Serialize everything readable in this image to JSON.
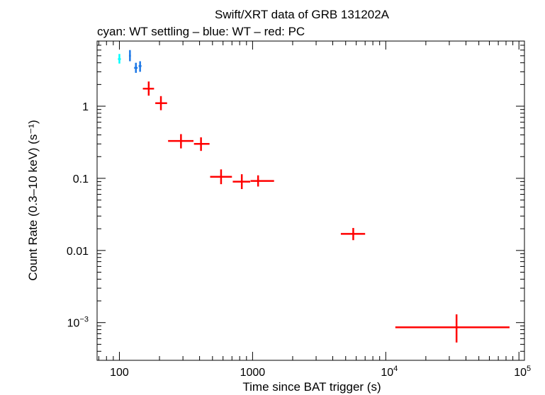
{
  "chart_data": {
    "type": "scatter",
    "title": "Swift/XRT data of GRB 131202A",
    "subtitle": "cyan: WT settling – blue: WT – red: PC",
    "xlabel": "Time since BAT trigger (s)",
    "ylabel": "Count Rate (0.3–10 keV) (s⁻¹)",
    "x_scale": "log",
    "y_scale": "log",
    "xlim": [
      68,
      110000
    ],
    "ylim": [
      0.0003,
      8
    ],
    "x_ticks": [
      {
        "value": 100,
        "label": "100"
      },
      {
        "value": 1000,
        "label": "1000"
      },
      {
        "value": 10000,
        "label": "10",
        "sup": "4"
      },
      {
        "value": 100000,
        "label": "10",
        "sup": "5"
      }
    ],
    "y_ticks": [
      {
        "value": 1,
        "label": "1"
      },
      {
        "value": 0.1,
        "label": "0.1"
      },
      {
        "value": 0.01,
        "label": "0.01"
      },
      {
        "value": 0.001,
        "label": "10",
        "sup": "−3"
      }
    ],
    "grid": false,
    "series": [
      {
        "color": "#00ffff",
        "points": [
          {
            "x": 100,
            "xlo": 97.5,
            "xhi": 102.5,
            "y": 4.5,
            "ylo": 3.9,
            "yhi": 5.3
          }
        ]
      },
      {
        "color": "#1e78e6",
        "points": [
          {
            "x": 120,
            "xlo": 118,
            "xhi": 122,
            "y": 5.0,
            "ylo": 4.2,
            "yhi": 6.0
          },
          {
            "x": 133,
            "xlo": 129,
            "xhi": 137,
            "y": 3.4,
            "ylo": 2.9,
            "yhi": 4.0
          },
          {
            "x": 143,
            "xlo": 139.5,
            "xhi": 146.5,
            "y": 3.6,
            "ylo": 3.0,
            "yhi": 4.2
          }
        ]
      },
      {
        "color": "#ff0000",
        "points": [
          {
            "x": 166,
            "xlo": 150,
            "xhi": 182,
            "y": 1.75,
            "ylo": 1.4,
            "yhi": 2.2
          },
          {
            "x": 205,
            "xlo": 186,
            "xhi": 228,
            "y": 1.1,
            "ylo": 0.88,
            "yhi": 1.38
          },
          {
            "x": 290,
            "xlo": 232,
            "xhi": 360,
            "y": 0.33,
            "ylo": 0.26,
            "yhi": 0.41
          },
          {
            "x": 410,
            "xlo": 363,
            "xhi": 475,
            "y": 0.3,
            "ylo": 0.24,
            "yhi": 0.37
          },
          {
            "x": 580,
            "xlo": 480,
            "xhi": 700,
            "y": 0.105,
            "ylo": 0.083,
            "yhi": 0.133
          },
          {
            "x": 830,
            "xlo": 710,
            "xhi": 960,
            "y": 0.09,
            "ylo": 0.071,
            "yhi": 0.114
          },
          {
            "x": 1100,
            "xlo": 965,
            "xhi": 1450,
            "y": 0.092,
            "ylo": 0.077,
            "yhi": 0.11
          },
          {
            "x": 5700,
            "xlo": 4600,
            "xhi": 7000,
            "y": 0.017,
            "ylo": 0.0139,
            "yhi": 0.0205
          },
          {
            "x": 34000,
            "xlo": 11800,
            "xhi": 85000,
            "y": 0.00086,
            "ylo": 0.00053,
            "yhi": 0.0013
          }
        ]
      }
    ]
  }
}
